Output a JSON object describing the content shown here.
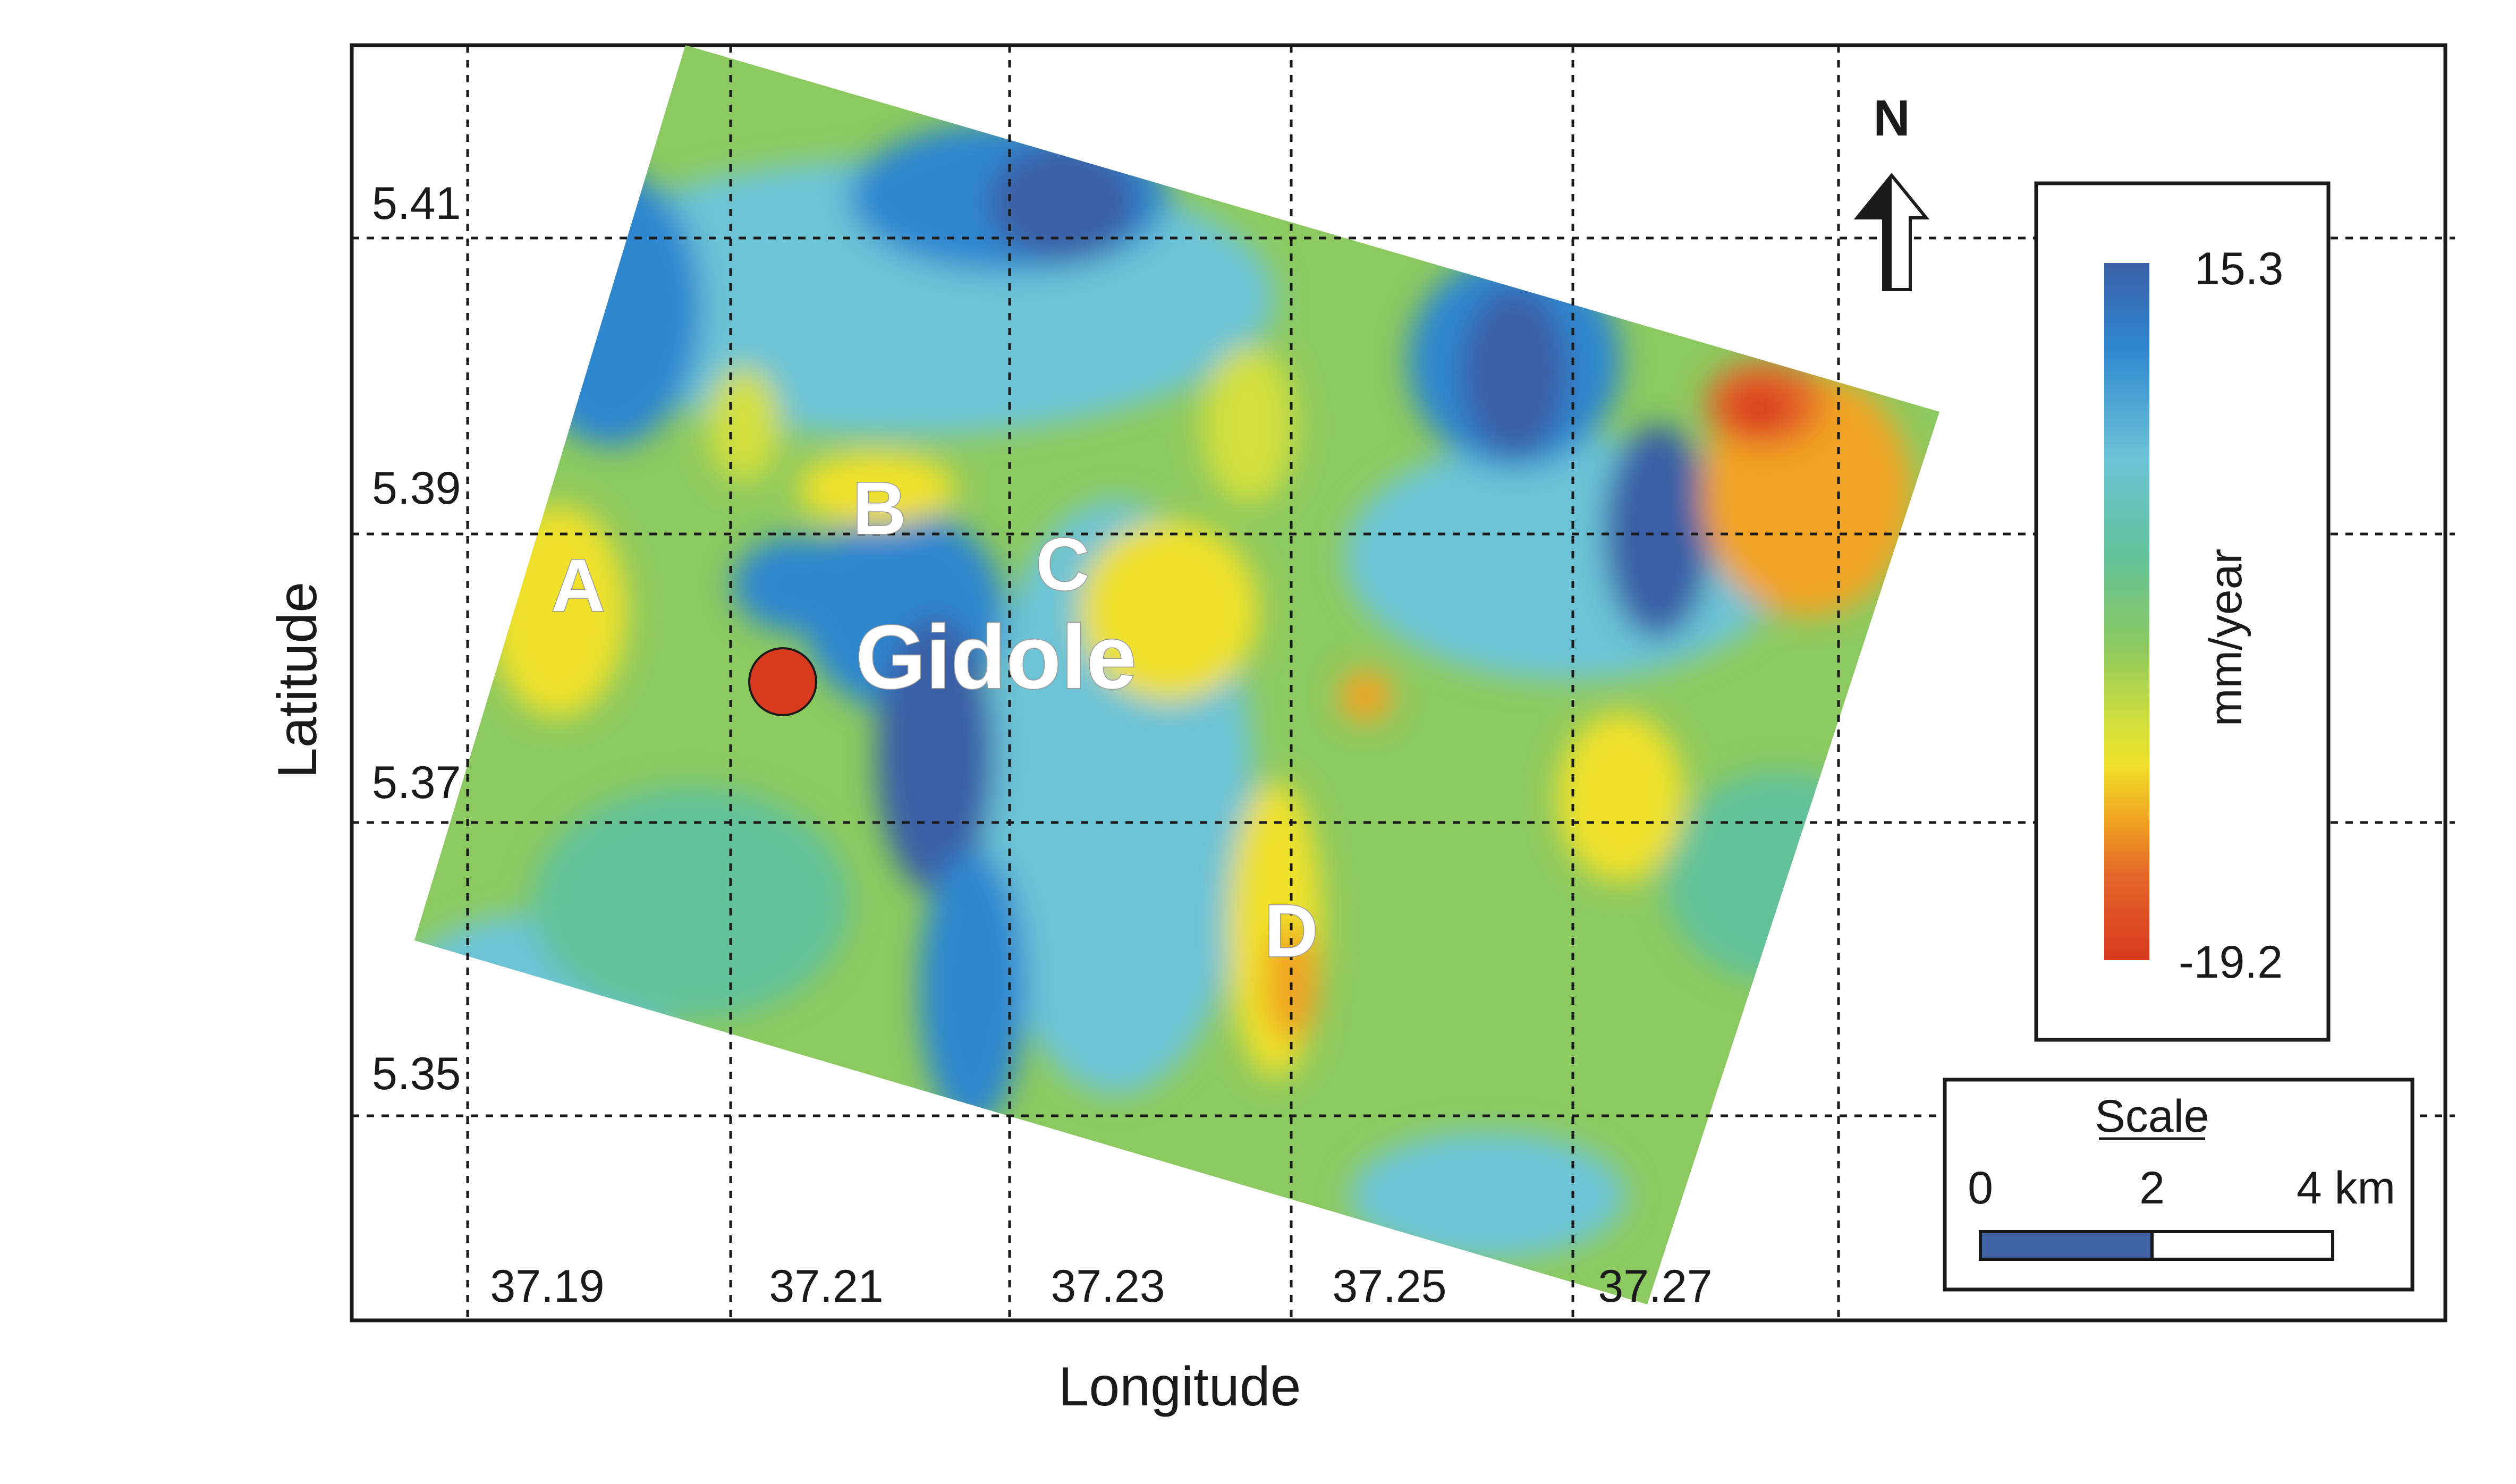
{
  "map": {
    "x_axis_title": "Longitude",
    "y_axis_title": "Latitude",
    "longitude_ticks": [
      "37.19",
      "37.21",
      "37.23",
      "37.25",
      "37.27"
    ],
    "latitude_ticks": [
      "5.41",
      "5.39",
      "5.37",
      "5.35"
    ],
    "town_label": "Gidole",
    "site_labels": [
      "A",
      "B",
      "C",
      "D"
    ],
    "north_label": "N",
    "colorbar": {
      "max_label": "15.3",
      "min_label": "-19.2",
      "unit_label": "mm/year",
      "colors": [
        "#3a5fa6",
        "#2f86cf",
        "#6cc3d6",
        "#63c29a",
        "#8cc960",
        "#d2df3c",
        "#f0e12a",
        "#f0a322",
        "#e4662a",
        "#d8391f"
      ]
    },
    "scale": {
      "title": "Scale",
      "tick_labels": [
        "0",
        "2",
        "4 km"
      ],
      "bar_color": "#3e62a4"
    },
    "town_marker_color": "#d8391f"
  }
}
